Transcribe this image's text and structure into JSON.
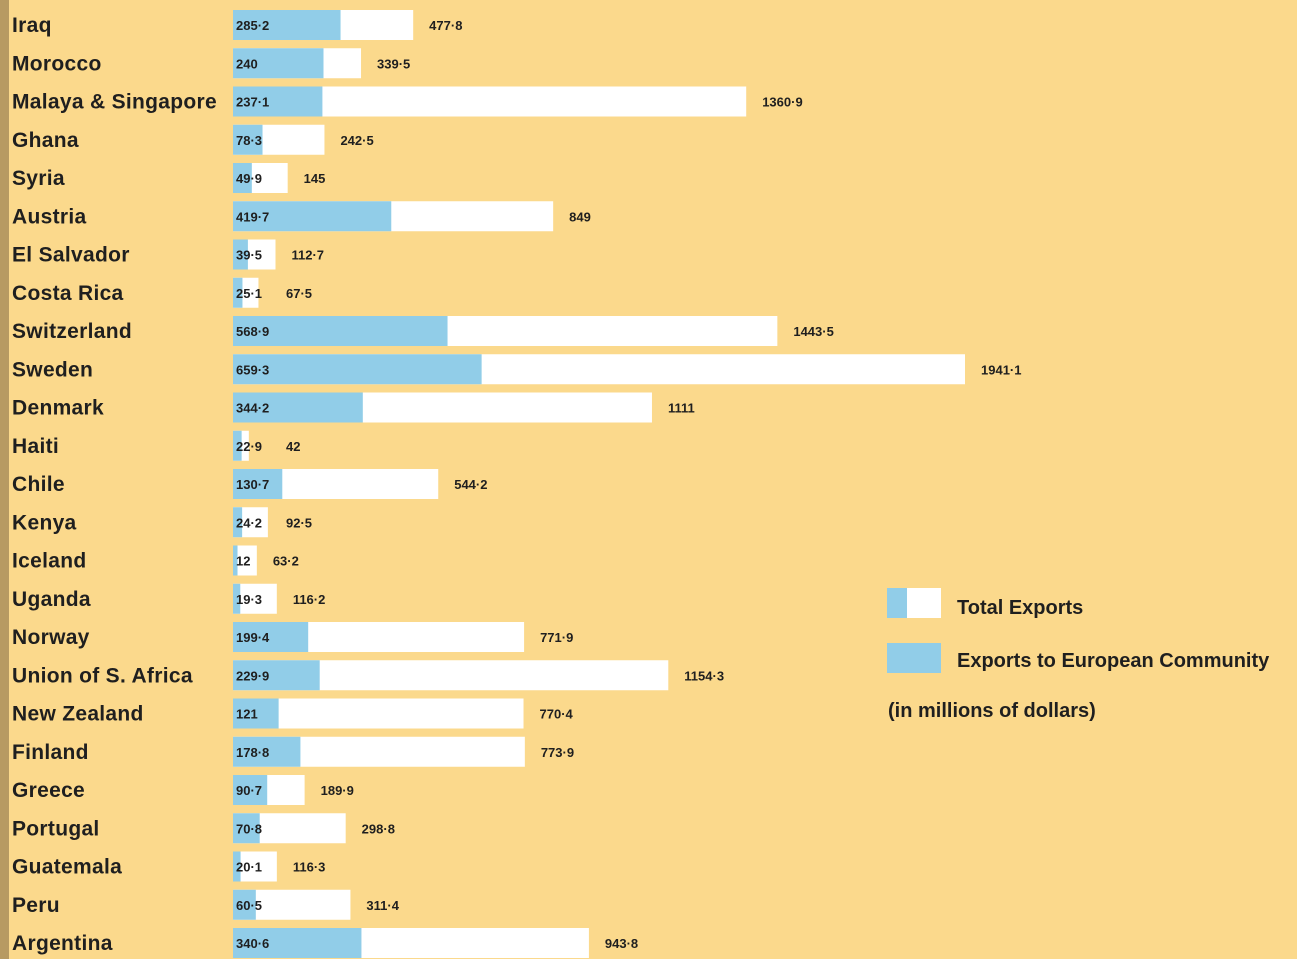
{
  "colors": {
    "background": "#fbd98c",
    "total_bar": "#ffffff",
    "ec_bar": "#91cde8",
    "margin_strip": "#b79a62"
  },
  "legend": {
    "total_label": "Total Exports",
    "ec_label": "Exports to European Community",
    "units_note": "(in millions of dollars)"
  },
  "chart_data": {
    "type": "bar",
    "orientation": "horizontal",
    "categories": [
      "Iraq",
      "Morocco",
      "Malaya & Singapore",
      "Ghana",
      "Syria",
      "Austria",
      "El Salvador",
      "Costa Rica",
      "Switzerland",
      "Sweden",
      "Denmark",
      "Haiti",
      "Chile",
      "Kenya",
      "Iceland",
      "Uganda",
      "Norway",
      "Union of S. Africa",
      "New Zealand",
      "Finland",
      "Greece",
      "Portugal",
      "Guatemala",
      "Peru",
      "Argentina"
    ],
    "series": [
      {
        "name": "Total Exports",
        "values": [
          477.8,
          339.5,
          1360.9,
          242.5,
          145,
          849,
          112.7,
          67.5,
          1443.5,
          1941.1,
          1111,
          42,
          544.2,
          92.5,
          63.2,
          116.2,
          771.9,
          1154.3,
          770.4,
          773.9,
          189.9,
          298.8,
          116.3,
          311.4,
          943.8
        ],
        "labels": [
          "477·8",
          "339·5",
          "1360·9",
          "242·5",
          "145",
          "849",
          "112·7",
          "67·5",
          "1443·5",
          "1941·1",
          "1111",
          "42",
          "544·2",
          "92·5",
          "63·2",
          "116·2",
          "771·9",
          "1154·3",
          "770·4",
          "773·9",
          "189·9",
          "298·8",
          "116·3",
          "311·4",
          "943·8"
        ]
      },
      {
        "name": "Exports to European Community",
        "values": [
          285.2,
          240,
          237.1,
          78.3,
          49.9,
          419.7,
          39.5,
          25.1,
          568.9,
          659.3,
          344.2,
          22.9,
          130.7,
          24.2,
          12,
          19.3,
          199.4,
          229.9,
          121,
          178.8,
          90.7,
          70.8,
          20.1,
          60.5,
          340.6
        ],
        "labels": [
          "285·2",
          "240",
          "237·1",
          "78·3",
          "49·9",
          "419·7",
          "39·5",
          "25·1",
          "568·9",
          "659·3",
          "344·2",
          "22·9",
          "130·7",
          "24·2",
          "12",
          "19·3",
          "199·4",
          "229·9",
          "121",
          "178·8",
          "90·7",
          "70·8",
          "20·1",
          "60·5",
          "340·6"
        ]
      }
    ],
    "grid": false,
    "legend_position": "right"
  }
}
